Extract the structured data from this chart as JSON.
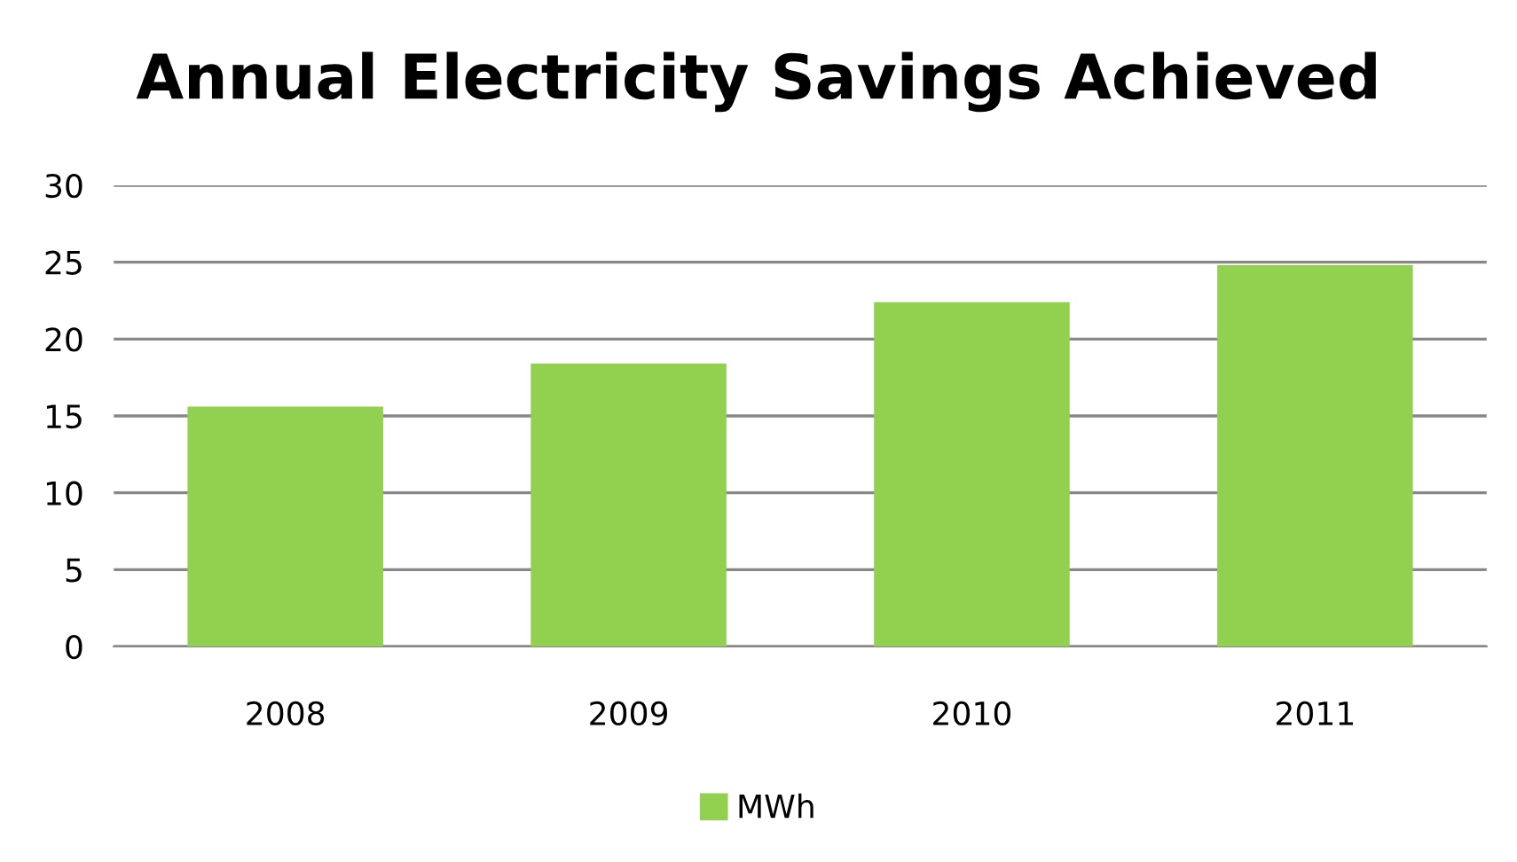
{
  "chart_data": {
    "type": "bar",
    "title": "Annual Electricity Savings Achieved",
    "categories": [
      "2008",
      "2009",
      "2010",
      "2011"
    ],
    "series": [
      {
        "name": "MWh",
        "color": "#92d050",
        "values": [
          15.6,
          18.4,
          22.4,
          24.8
        ]
      }
    ],
    "ylim": [
      0,
      30
    ],
    "yticks": [
      0,
      5,
      10,
      15,
      20,
      25,
      30
    ],
    "grid": "y",
    "legend": "bottom"
  }
}
